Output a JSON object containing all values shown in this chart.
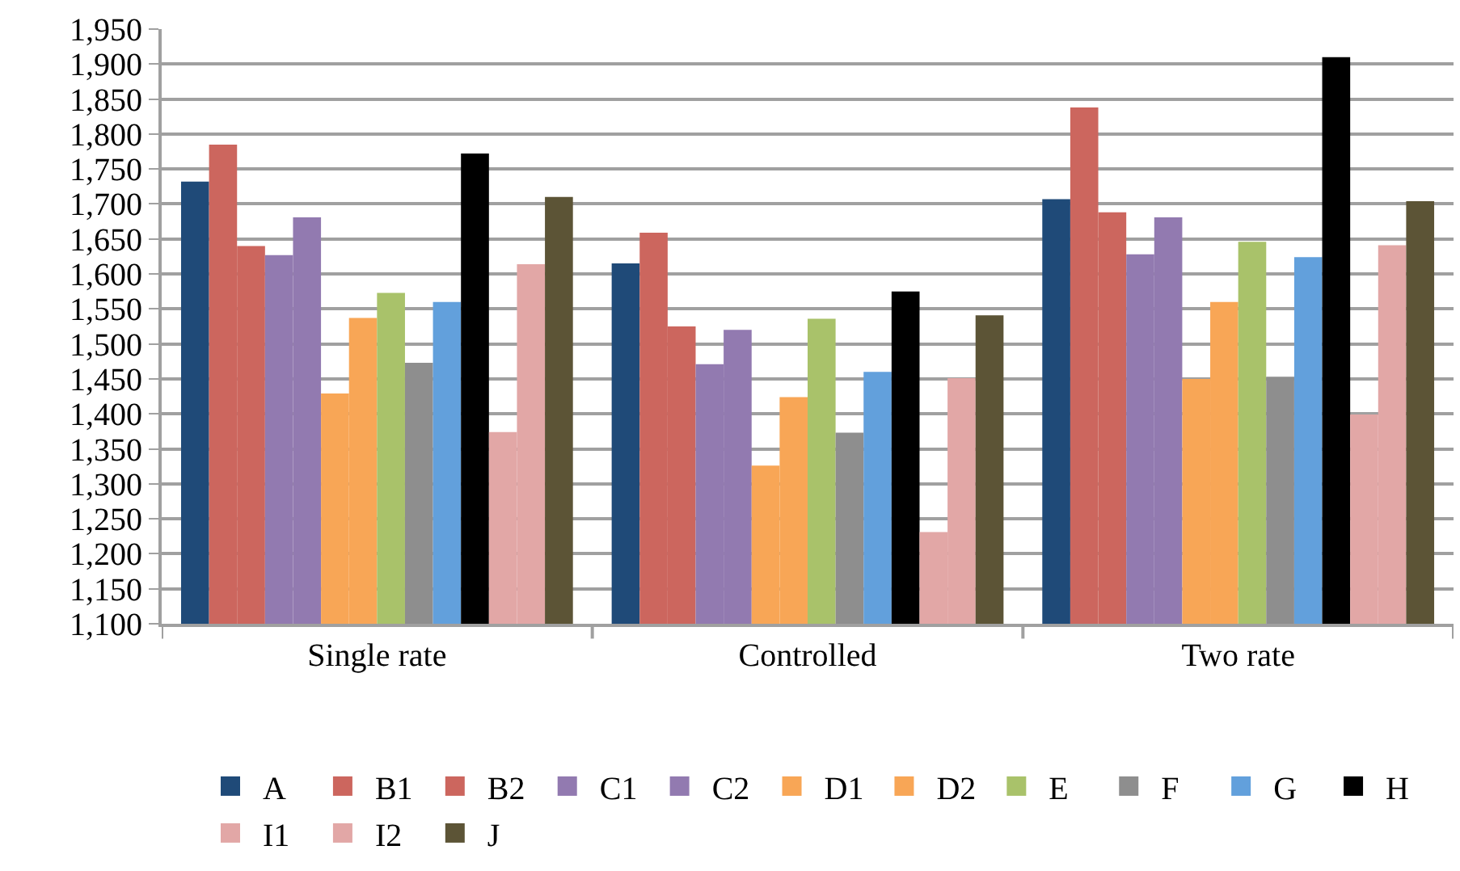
{
  "chart_data": {
    "type": "bar",
    "categories": [
      "Single rate",
      "Controlled",
      "Two rate"
    ],
    "series": [
      {
        "name": "A",
        "color": "#1f4a78",
        "values": [
          1732,
          1615,
          1707
        ]
      },
      {
        "name": "B1",
        "color": "#cc665e",
        "values": [
          1785,
          1659,
          1838
        ]
      },
      {
        "name": "B2",
        "color": "#cc665e",
        "values": [
          1640,
          1525,
          1688
        ]
      },
      {
        "name": "C1",
        "color": "#927ab0",
        "values": [
          1627,
          1471,
          1628
        ]
      },
      {
        "name": "C2",
        "color": "#927ab0",
        "values": [
          1681,
          1520,
          1681
        ]
      },
      {
        "name": "D1",
        "color": "#f8a656",
        "values": [
          1429,
          1326,
          1450
        ]
      },
      {
        "name": "D2",
        "color": "#f8a656",
        "values": [
          1537,
          1424,
          1560
        ]
      },
      {
        "name": "E",
        "color": "#a9c26a",
        "values": [
          1573,
          1536,
          1646
        ]
      },
      {
        "name": "F",
        "color": "#8e8e8e",
        "values": [
          1473,
          1373,
          1453
        ]
      },
      {
        "name": "G",
        "color": "#62a0dc",
        "values": [
          1560,
          1460,
          1624
        ]
      },
      {
        "name": "H",
        "color": "#000000",
        "values": [
          1772,
          1575,
          1910
        ]
      },
      {
        "name": "I1",
        "color": "#e2a7a6",
        "values": [
          1374,
          1231,
          1399
        ]
      },
      {
        "name": "I2",
        "color": "#e2a7a6",
        "values": [
          1614,
          1451,
          1641
        ]
      },
      {
        "name": "J",
        "color": "#5c5436",
        "values": [
          1710,
          1541,
          1704
        ]
      }
    ],
    "ylim": [
      1100,
      1950
    ],
    "yticks": [
      {
        "value": 1100,
        "label": "1,100"
      },
      {
        "value": 1150,
        "label": "1,150"
      },
      {
        "value": 1200,
        "label": "1,200"
      },
      {
        "value": 1250,
        "label": "1,250"
      },
      {
        "value": 1300,
        "label": "1,300"
      },
      {
        "value": 1350,
        "label": "1,350"
      },
      {
        "value": 1400,
        "label": "1,400"
      },
      {
        "value": 1450,
        "label": "1,450"
      },
      {
        "value": 1500,
        "label": "1,500"
      },
      {
        "value": 1550,
        "label": "1,550"
      },
      {
        "value": 1600,
        "label": "1,600"
      },
      {
        "value": 1650,
        "label": "1,650"
      },
      {
        "value": 1700,
        "label": "1,700"
      },
      {
        "value": 1750,
        "label": "1,750"
      },
      {
        "value": 1800,
        "label": "1,800"
      },
      {
        "value": 1850,
        "label": "1,850"
      },
      {
        "value": 1900,
        "label": "1,900"
      },
      {
        "value": 1950,
        "label": "1,950"
      }
    ],
    "grid": "y",
    "legend": "bottom"
  }
}
